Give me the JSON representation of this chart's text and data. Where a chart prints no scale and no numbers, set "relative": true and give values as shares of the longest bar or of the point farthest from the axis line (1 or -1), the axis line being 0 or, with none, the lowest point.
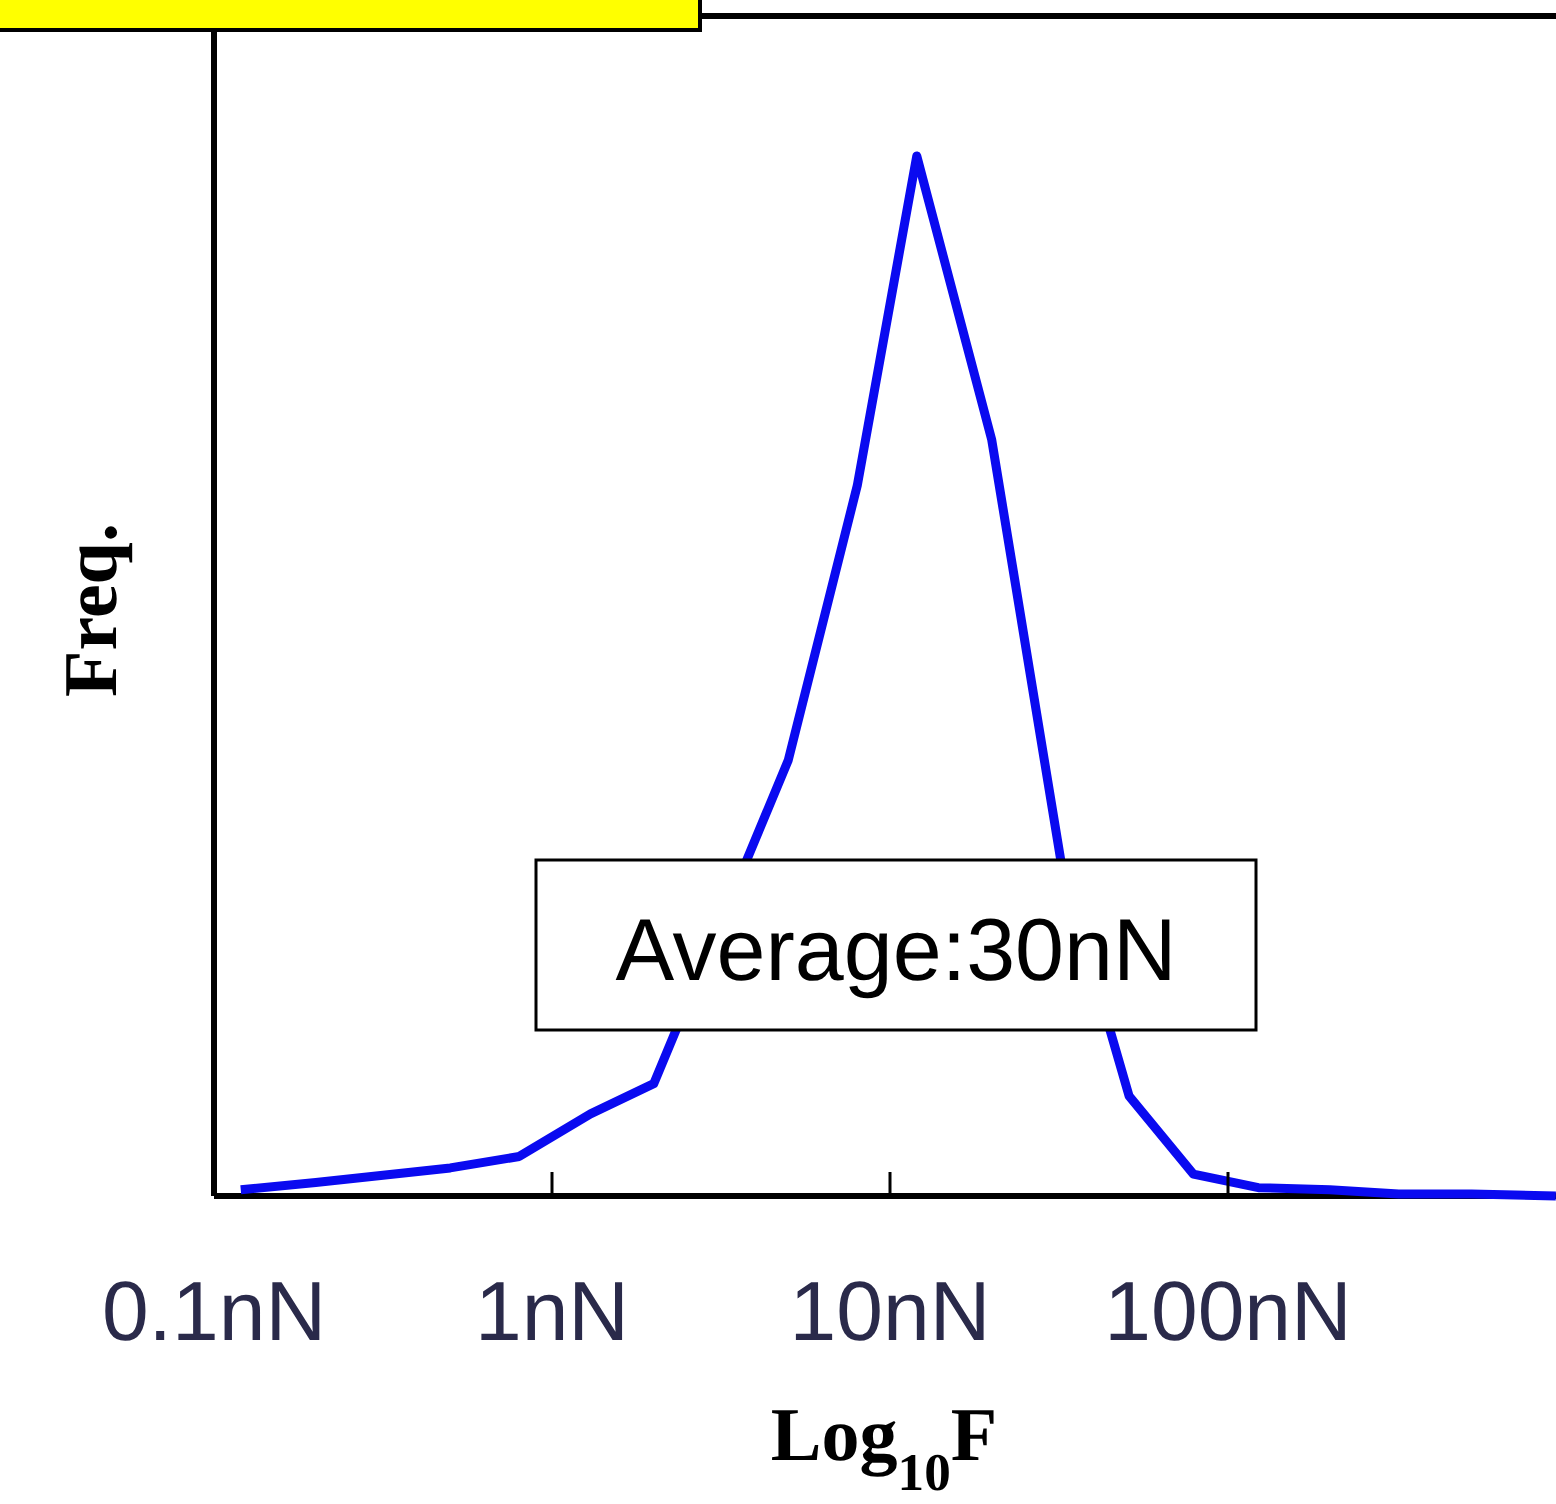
{
  "chart_data": {
    "type": "line",
    "xlabel": "Log$_{10}$F",
    "ylabel": "Freq.",
    "relative": true,
    "x": [
      0.12,
      0.2,
      0.5,
      0.8,
      1.3,
      2,
      3.2,
      5,
      8,
      12,
      20,
      32,
      51,
      79,
      123,
      200,
      320,
      525,
      933
    ],
    "xlim": [
      0.1,
      1000
    ],
    "log": "x",
    "xticks": [
      {
        "value": 0.1,
        "label": "0.1nN"
      },
      {
        "value": 1,
        "label": "1nN"
      },
      {
        "value": 10,
        "label": "10nN"
      },
      {
        "value": 100,
        "label": "100nN"
      }
    ],
    "series": [
      {
        "color": "#0a0af0",
        "values": [
          0.006,
          0.013,
          0.027,
          0.038,
          0.079,
          0.108,
          null,
          0.419,
          0.683,
          1,
          0.727,
          0.323,
          0.096,
          0.021,
          0.008,
          0.006,
          0.002,
          0.002,
          0
        ]
      }
    ],
    "annotations": [
      "Average:30nN"
    ],
    "grid": false,
    "marker": "none",
    "line_style": "solid"
  }
}
